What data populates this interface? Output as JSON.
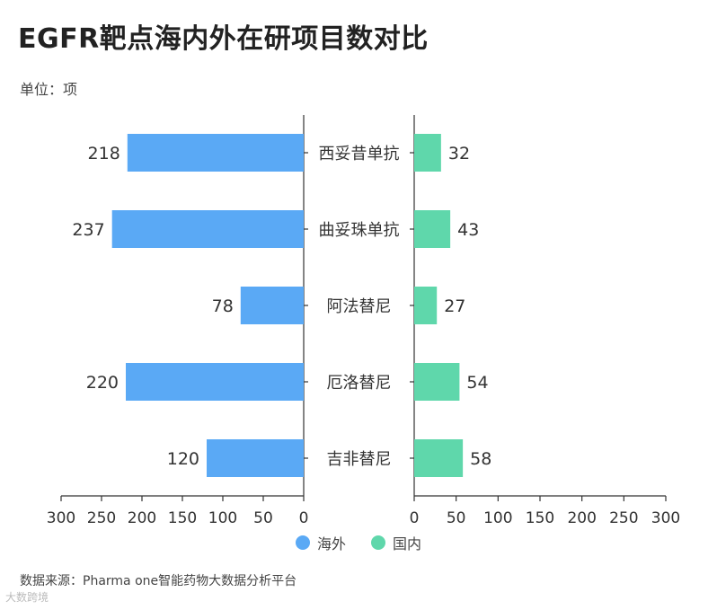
{
  "chart_data": {
    "type": "bar",
    "orientation": "horizontal-butterfly",
    "title": "EGFR靶点海内外在研项目数对比",
    "unit_label": "单位：项",
    "categories": [
      "西妥昔单抗",
      "曲妥珠单抗",
      "阿法替尼",
      "厄洛替尼",
      "吉非替尼"
    ],
    "series": [
      {
        "name": "海外",
        "values": [
          218,
          237,
          78,
          220,
          120
        ],
        "color": "#5aa9f5"
      },
      {
        "name": "国内",
        "values": [
          32,
          43,
          27,
          54,
          58
        ],
        "color": "#5fd7ab"
      }
    ],
    "xlim": [
      0,
      300
    ],
    "ticks": [
      0,
      50,
      100,
      150,
      200,
      250,
      300
    ],
    "grid": false,
    "legend_position": "bottom-center"
  },
  "source": "数据来源：Pharma one智能药物大数据分析平台",
  "watermark": "大数跨境"
}
